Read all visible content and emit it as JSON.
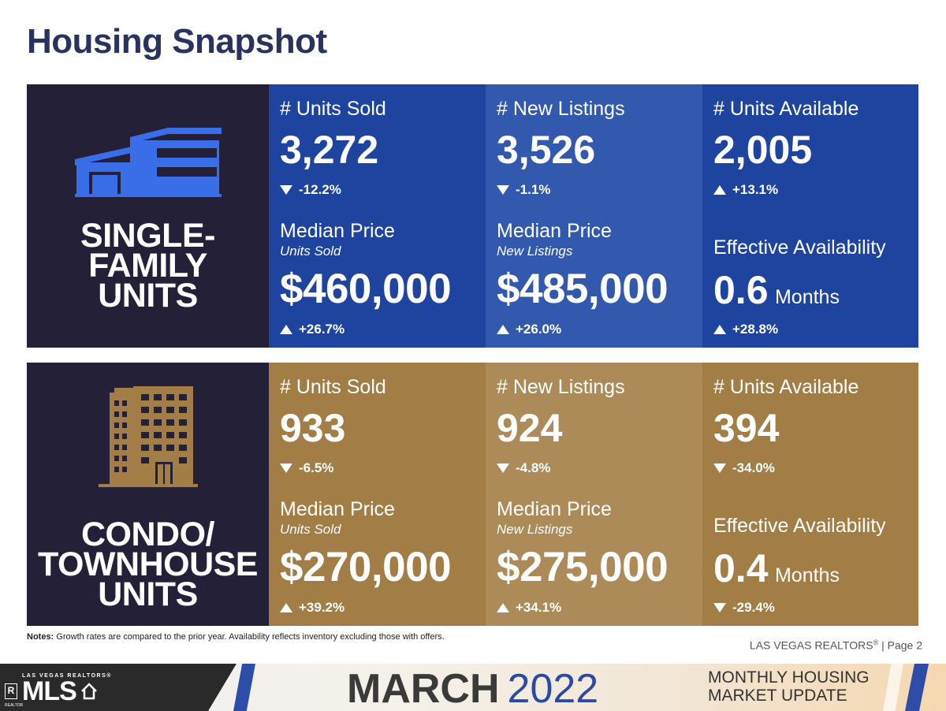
{
  "title": "Housing Snapshot",
  "single_family": {
    "label_lines": [
      "SINGLE-",
      "FAMILY",
      "UNITS"
    ],
    "units_sold": {
      "label": "# Units Sold",
      "value": "3,272",
      "change": "-12.2%",
      "direction": "down"
    },
    "new_listings": {
      "label": "# New Listings",
      "value": "3,526",
      "change": "-1.1%",
      "direction": "down"
    },
    "units_available": {
      "label": "# Units Available",
      "value": "2,005",
      "change": "+13.1%",
      "direction": "up"
    },
    "median_sold": {
      "label": "Median Price",
      "sub": "Units Sold",
      "value": "$460,000",
      "change": "+26.7%",
      "direction": "up"
    },
    "median_listings": {
      "label": "Median Price",
      "sub": "New Listings",
      "value": "$485,000",
      "change": "+26.0%",
      "direction": "up"
    },
    "effective": {
      "label": "Effective Availability",
      "value": "0.6",
      "unit": "Months",
      "change": "+28.8%",
      "direction": "up"
    }
  },
  "condo": {
    "label_lines": [
      "CONDO/",
      "TOWNHOUSE",
      "UNITS"
    ],
    "units_sold": {
      "label": "# Units Sold",
      "value": "933",
      "change": "-6.5%",
      "direction": "down"
    },
    "new_listings": {
      "label": "# New Listings",
      "value": "924",
      "change": "-4.8%",
      "direction": "down"
    },
    "units_available": {
      "label": "# Units Available",
      "value": "394",
      "change": "-34.0%",
      "direction": "down"
    },
    "median_sold": {
      "label": "Median Price",
      "sub": "Units Sold",
      "value": "$270,000",
      "change": "+39.2%",
      "direction": "up"
    },
    "median_listings": {
      "label": "Median Price",
      "sub": "New Listings",
      "value": "$275,000",
      "change": "+34.1%",
      "direction": "up"
    },
    "effective": {
      "label": "Effective Availability",
      "value": "0.4",
      "unit": "Months",
      "change": "-29.4%",
      "direction": "down"
    }
  },
  "notes": {
    "prefix": "Notes:",
    "text": " Growth rates are compared to the prior year. Availability reflects inventory excluding those with offers."
  },
  "page_ref": {
    "org": "LAS VEGAS REALTORS",
    "mark": "®",
    "page": " | Page 2"
  },
  "footer": {
    "logo_top": "LAS VEGAS REALTORS®",
    "logo_r": "R",
    "logo_main": "MLS",
    "logo_small": "REALTOR",
    "month": "MARCH",
    "year": "2022",
    "update_line1": "MONTHLY HOUSING",
    "update_line2": "MARKET UPDATE"
  },
  "colors": {
    "title": "#2a3260",
    "label_panel": "#232037",
    "sf_dark": "#1f44a0",
    "sf_light": "#3259ad",
    "condo_dark": "#a27d45",
    "condo_light": "#ad8b58",
    "house_icon": "#3a6ee8",
    "building_icon": "#a27d45"
  },
  "icons": {
    "single_family": "house-icon",
    "condo": "building-icon"
  }
}
